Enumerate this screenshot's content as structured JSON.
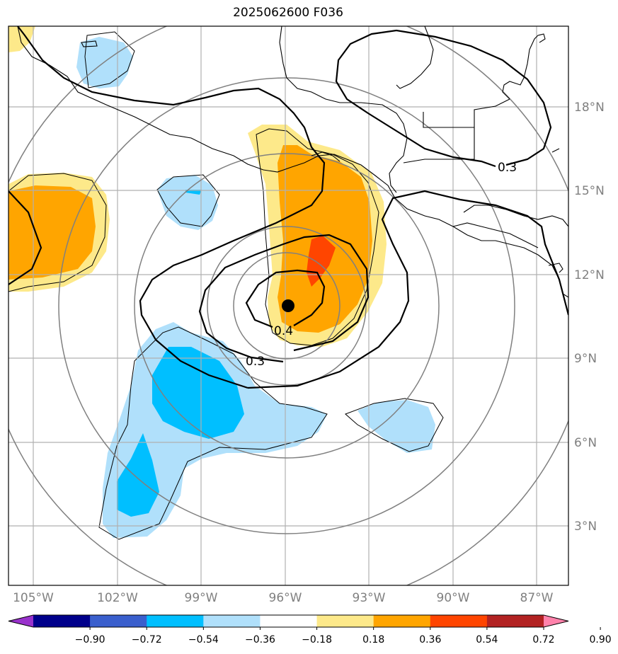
{
  "title": "2025062600 F036",
  "map": {
    "lat_labels": [
      "18°N",
      "15°N",
      "12°N",
      "9°N",
      "6°N",
      "3°N"
    ],
    "lon_labels": [
      "105°W",
      "102°W",
      "99°W",
      "96°W",
      "93°W",
      "90°W",
      "87°W"
    ],
    "contour_labels": [
      "0.4",
      "0.3",
      "0.3"
    ],
    "center_marker": "storm-center-dot",
    "fill_colors": {
      "light_yellow": "#fde98a",
      "orange": "#ffa500",
      "red_orange": "#ff4500",
      "light_blue": "#b0e0fb",
      "deep_sky_blue": "#00bfff"
    }
  },
  "colorbar": {
    "labels": [
      "−0.90",
      "−0.72",
      "−0.54",
      "−0.36",
      "−0.18",
      "0.18",
      "0.36",
      "0.54",
      "0.72",
      "0.90"
    ],
    "colors": [
      "#9932cc",
      "#00008b",
      "#3a5fcd",
      "#00bfff",
      "#b0e0fb",
      "#ffffff",
      "#fde98a",
      "#ffa500",
      "#ff4500",
      "#b22222",
      "#ff82ab"
    ]
  }
}
